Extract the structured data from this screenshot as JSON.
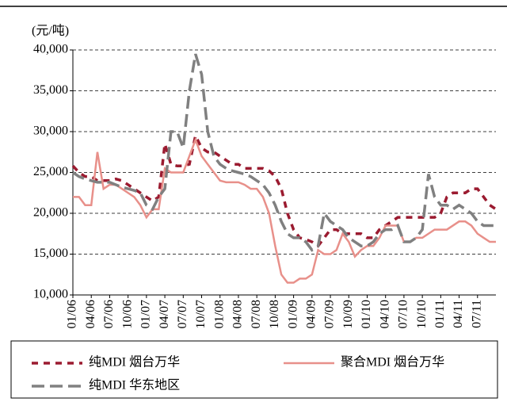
{
  "chart_data": {
    "type": "line",
    "y_axis_label": "(元/吨)",
    "categories": [
      "01/06",
      null,
      null,
      "04/06",
      null,
      null,
      "07/06",
      null,
      null,
      "10/06",
      null,
      null,
      "01/07",
      null,
      null,
      "04/07",
      null,
      null,
      "07/07",
      null,
      null,
      "10/07",
      null,
      null,
      "01/08",
      null,
      null,
      "04/08",
      null,
      null,
      "07/08",
      null,
      null,
      "10/08",
      null,
      null,
      "01/09",
      null,
      null,
      "04/09",
      null,
      null,
      "07/09",
      null,
      null,
      "10/09",
      null,
      null,
      "01/10",
      null,
      null,
      "04/10",
      null,
      null,
      "07/10",
      null,
      null,
      "10/10",
      null,
      null,
      "01/11",
      null,
      null,
      "04/11",
      null,
      null,
      "07/11",
      null,
      null,
      null
    ],
    "series": [
      {
        "name": "纯MDI 烟台万华",
        "color": "#9b1b30",
        "line_style": "dashed",
        "values": [
          25800,
          25000,
          24500,
          24500,
          24000,
          24000,
          24000,
          24200,
          24000,
          23500,
          23000,
          22500,
          22000,
          21500,
          22000,
          28500,
          26000,
          25800,
          25800,
          26000,
          29500,
          28000,
          27500,
          27500,
          27000,
          26500,
          26000,
          26000,
          25500,
          25500,
          25500,
          25500,
          25200,
          24500,
          23000,
          20000,
          18000,
          17000,
          16800,
          16500,
          16000,
          17000,
          18000,
          18000,
          17500,
          17500,
          17500,
          17500,
          17000,
          17000,
          18000,
          18500,
          19000,
          19500,
          19500,
          19500,
          19500,
          19500,
          19500,
          19500,
          20000,
          22000,
          22500,
          22500,
          22500,
          23000,
          23000,
          22000,
          21000,
          20500
        ]
      },
      {
        "name": "聚合MDI 烟台万华",
        "color": "#e8908a",
        "line_style": "solid",
        "values": [
          22000,
          22000,
          21000,
          21000,
          27500,
          23000,
          23500,
          23500,
          23000,
          22500,
          22000,
          21000,
          19500,
          20500,
          20500,
          25500,
          25000,
          25000,
          25000,
          27000,
          29000,
          27000,
          26000,
          25000,
          24000,
          23800,
          23800,
          23800,
          23500,
          23000,
          23000,
          22000,
          20000,
          16000,
          12500,
          11500,
          11500,
          12000,
          12000,
          12500,
          15500,
          15000,
          15000,
          15500,
          17500,
          16500,
          14700,
          15500,
          16000,
          16000,
          17000,
          18500,
          18500,
          18500,
          16500,
          16500,
          17000,
          17000,
          17500,
          18000,
          18000,
          18000,
          18500,
          19000,
          19000,
          18500,
          17500,
          17000,
          16500,
          16500
        ]
      },
      {
        "name": "纯MDI 华东地区",
        "color": "#808080",
        "line_style": "dashed",
        "values": [
          25000,
          24500,
          24200,
          24000,
          23800,
          23800,
          23800,
          23500,
          23200,
          23000,
          22800,
          22500,
          21000,
          20500,
          22000,
          23000,
          30000,
          30000,
          28000,
          35000,
          39500,
          37000,
          30000,
          27000,
          26000,
          25500,
          25200,
          25000,
          24800,
          24500,
          24000,
          23500,
          22500,
          21000,
          19000,
          17500,
          17000,
          17000,
          16500,
          15500,
          16000,
          20000,
          19000,
          18500,
          18000,
          17000,
          16500,
          16000,
          16000,
          16500,
          17500,
          18000,
          18000,
          18500,
          16500,
          16500,
          17000,
          18000,
          24800,
          22000,
          21000,
          21000,
          20500,
          21000,
          20500,
          20000,
          19000,
          18500,
          18500,
          18500
        ]
      }
    ],
    "ylim": [
      10000,
      40000
    ],
    "yticks": [
      {
        "value": 10000,
        "label": "10,000"
      },
      {
        "value": 15000,
        "label": "15,000"
      },
      {
        "value": 20000,
        "label": "20,000"
      },
      {
        "value": 25000,
        "label": "25,000"
      },
      {
        "value": 30000,
        "label": "30,000"
      },
      {
        "value": 35000,
        "label": "35,000"
      },
      {
        "value": 40000,
        "label": "40,000"
      }
    ],
    "grid": true,
    "legend": "bottom"
  }
}
